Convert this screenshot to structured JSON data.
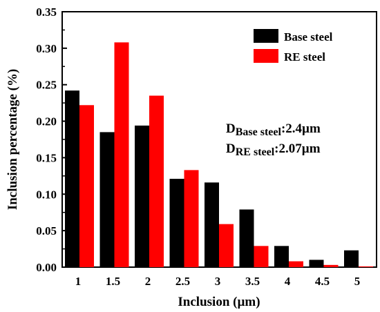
{
  "chart_data": {
    "type": "bar",
    "xlabel": "Inclusion (µm)",
    "ylabel": "Inclusion percentage (%)",
    "ylim": [
      0,
      0.35
    ],
    "yticks": [
      "0.00",
      "0.05",
      "0.10",
      "0.15",
      "0.20",
      "0.25",
      "0.30",
      "0.35"
    ],
    "categories": [
      "1",
      "1.5",
      "2",
      "2.5",
      "3",
      "3.5",
      "4",
      "4.5",
      "5"
    ],
    "series": [
      {
        "name": "Base steel",
        "color": "#000000",
        "values": [
          0.242,
          0.185,
          0.194,
          0.121,
          0.116,
          0.079,
          0.029,
          0.01,
          0.023
        ]
      },
      {
        "name": "RE steel",
        "color": "#ff0000",
        "values": [
          0.222,
          0.308,
          0.235,
          0.133,
          0.059,
          0.029,
          0.008,
          0.003,
          0.001
        ]
      }
    ],
    "legend_position": "top-right",
    "annotations": [
      {
        "main": "D",
        "sub": "Base steel",
        "value": ":2.4µm"
      },
      {
        "main": "D",
        "sub": "RE steel",
        "value": ":2.07µm"
      }
    ]
  }
}
